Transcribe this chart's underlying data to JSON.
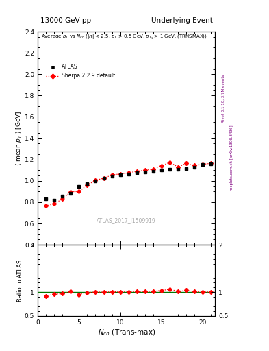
{
  "title_left": "13000 GeV pp",
  "title_right": "Underlying Event",
  "ylabel_main": "⟨ mean p_{T} ⟩ [GeV]",
  "ylabel_ratio": "Ratio to ATLAS",
  "xlabel": "N_{ch} (Trans-max)",
  "watermark": "ATLAS_2017_I1509919",
  "right_label_top": "Rivet 3.1.10, 3.7M events",
  "right_label_bot": "mcplots.cern.ch [arXiv:1306.3436]",
  "atlas_x": [
    1,
    2,
    3,
    4,
    5,
    6,
    7,
    8,
    9,
    10,
    11,
    12,
    13,
    14,
    15,
    16,
    17,
    18,
    19,
    20,
    21
  ],
  "atlas_y": [
    0.83,
    0.82,
    0.855,
    0.885,
    0.945,
    0.97,
    1.0,
    1.025,
    1.045,
    1.055,
    1.065,
    1.075,
    1.082,
    1.09,
    1.1,
    1.105,
    1.11,
    1.115,
    1.13,
    1.15,
    1.16
  ],
  "atlas_yerr": [
    0.008,
    0.008,
    0.007,
    0.007,
    0.007,
    0.007,
    0.007,
    0.007,
    0.007,
    0.007,
    0.007,
    0.007,
    0.007,
    0.007,
    0.007,
    0.007,
    0.007,
    0.007,
    0.008,
    0.008,
    0.01
  ],
  "sherpa_x": [
    1,
    2,
    3,
    4,
    5,
    6,
    7,
    8,
    9,
    10,
    11,
    12,
    13,
    14,
    15,
    16,
    17,
    18,
    19,
    20,
    21
  ],
  "sherpa_y": [
    0.765,
    0.785,
    0.83,
    0.898,
    0.9,
    0.96,
    1.005,
    1.025,
    1.055,
    1.065,
    1.075,
    1.09,
    1.1,
    1.11,
    1.14,
    1.175,
    1.13,
    1.165,
    1.145,
    1.155,
    1.165
  ],
  "sherpa_yerr": [
    0.005,
    0.005,
    0.005,
    0.005,
    0.005,
    0.005,
    0.005,
    0.005,
    0.005,
    0.005,
    0.005,
    0.005,
    0.005,
    0.005,
    0.005,
    0.005,
    0.005,
    0.005,
    0.005,
    0.005,
    0.005
  ],
  "ratio_sherpa_y": [
    0.921,
    0.957,
    0.97,
    1.015,
    0.952,
    0.99,
    1.005,
    1.0,
    1.01,
    1.01,
    1.01,
    1.014,
    1.017,
    1.018,
    1.036,
    1.063,
    1.018,
    1.045,
    1.013,
    1.004,
    1.004
  ],
  "ylim_main": [
    0.4,
    2.4
  ],
  "ylim_ratio": [
    0.5,
    2.0
  ],
  "xlim": [
    0,
    21.5
  ],
  "atlas_color": "#000000",
  "sherpa_color": "#ff0000",
  "ratio_line_color": "#007700",
  "background_color": "#ffffff"
}
